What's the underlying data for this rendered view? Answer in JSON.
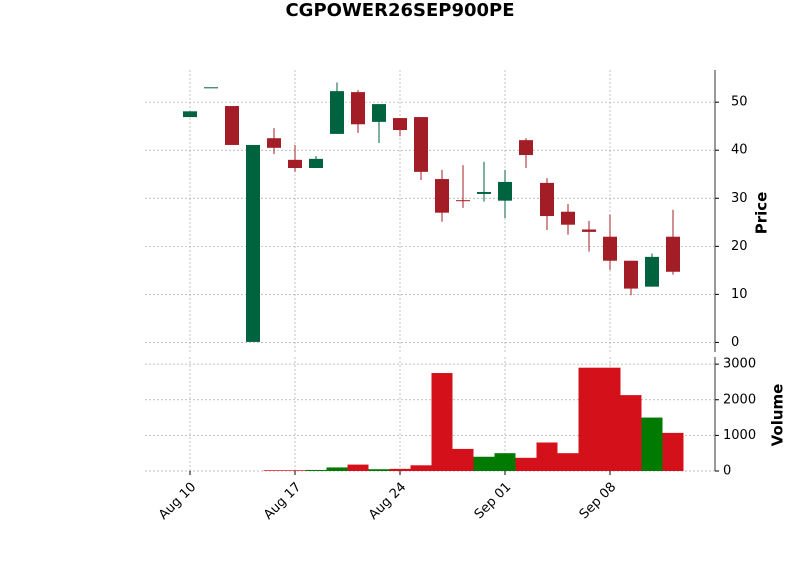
{
  "chart_data": {
    "type": "candlestick",
    "title": "CGPOWER26SEP900PE",
    "ylabel": "Price",
    "volume_label": "Volume",
    "categories": [
      "Aug 10",
      null,
      null,
      null,
      null,
      "Aug 17",
      null,
      null,
      null,
      null,
      "Aug 24",
      null,
      null,
      null,
      null,
      "Sep 01",
      null,
      null,
      null,
      null,
      "Sep 08",
      null,
      null,
      null
    ],
    "open": [
      46.9,
      53.1,
      49.2,
      0.1,
      42.5,
      38.0,
      36.3,
      43.4,
      52.1,
      45.9,
      46.7,
      46.9,
      34.0,
      29.6,
      30.9,
      29.5,
      42.1,
      33.2,
      27.2,
      23.5,
      22.0,
      17.0,
      11.6,
      22.0
    ],
    "high": [
      48.1,
      53.1,
      49.2,
      41.1,
      44.6,
      41.1,
      38.8,
      54.1,
      52.5,
      49.6,
      46.7,
      46.9,
      35.9,
      36.9,
      37.6,
      35.9,
      42.5,
      34.2,
      28.8,
      25.3,
      26.6,
      17.0,
      18.5,
      27.6
    ],
    "low": [
      46.9,
      53.1,
      41.1,
      0.1,
      39.2,
      35.5,
      36.3,
      43.4,
      43.6,
      41.5,
      42.9,
      33.8,
      25.1,
      28.0,
      29.3,
      25.9,
      36.3,
      23.4,
      22.4,
      18.9,
      15.1,
      9.8,
      11.6,
      14.1
    ],
    "close": [
      48.1,
      53.1,
      41.1,
      41.1,
      40.5,
      36.3,
      38.2,
      52.3,
      45.4,
      49.6,
      44.2,
      35.5,
      27.0,
      29.4,
      31.3,
      33.4,
      39.0,
      26.3,
      24.5,
      23.0,
      17.0,
      11.2,
      17.8,
      14.7
    ],
    "volume": [
      0,
      0,
      0,
      0,
      20,
      20,
      30,
      100,
      180,
      50,
      60,
      160,
      2750,
      620,
      400,
      500,
      370,
      800,
      500,
      2900,
      2900,
      2130,
      1500,
      1070
    ],
    "up_color": "#006340",
    "down_color": "#a31d27",
    "volume_up_color": "#007a00",
    "volume_down_color": "#d4101a",
    "ylim": [
      -2,
      56.7
    ],
    "yticks": [
      0,
      10,
      20,
      30,
      40,
      50
    ],
    "volume_ylim": [
      0,
      3200
    ],
    "volume_yticks": [
      0,
      1000,
      2000,
      3000
    ],
    "grid": true
  }
}
